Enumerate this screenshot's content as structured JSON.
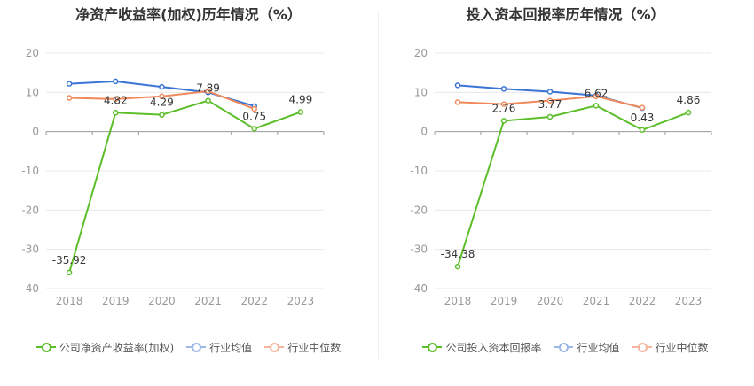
{
  "colors": {
    "company": "#5cbf2a",
    "industry_avg": "#3a75d6",
    "industry_median": "#f08a5d",
    "legend_avg": "#9db8e8",
    "legend_median": "#f5b49d",
    "grid": "#e8e8e8",
    "axis": "#999999",
    "tick": "#999999"
  },
  "chart_data": [
    {
      "type": "line",
      "title": "净资产收益率(加权)历年情况（%）",
      "categories": [
        "2018",
        "2019",
        "2020",
        "2021",
        "2022",
        "2023"
      ],
      "ylim": [
        -40,
        20
      ],
      "yticks": [
        20,
        10,
        0,
        -10,
        -20,
        -30,
        -40
      ],
      "grid": true,
      "legend_position": "bottom",
      "series": [
        {
          "name": "公司净资产收益率(加权)",
          "key": "company",
          "values": [
            -35.92,
            4.82,
            4.29,
            7.89,
            0.75,
            4.99
          ],
          "labels": [
            "-35.92",
            "4.82",
            "4.29",
            "7.89",
            "0.75",
            "4.99"
          ]
        },
        {
          "name": "行业均值",
          "key": "industry_avg",
          "values": [
            12.2,
            12.8,
            11.4,
            10.0,
            6.5,
            null
          ]
        },
        {
          "name": "行业中位数",
          "key": "industry_median",
          "values": [
            8.6,
            8.3,
            9.0,
            10.3,
            5.8,
            null
          ]
        }
      ]
    },
    {
      "type": "line",
      "title": "投入资本回报率历年情况（%）",
      "categories": [
        "2018",
        "2019",
        "2020",
        "2021",
        "2022",
        "2023"
      ],
      "ylim": [
        -40,
        20
      ],
      "yticks": [
        20,
        10,
        0,
        -10,
        -20,
        -30,
        -40
      ],
      "grid": true,
      "legend_position": "bottom",
      "series": [
        {
          "name": "公司投入资本回报率",
          "key": "company",
          "values": [
            -34.38,
            2.76,
            3.77,
            6.62,
            0.43,
            4.86
          ],
          "labels": [
            "-34.38",
            "2.76",
            "3.77",
            "6.62",
            "0.43",
            "4.86"
          ]
        },
        {
          "name": "行业均值",
          "key": "industry_avg",
          "values": [
            11.8,
            10.9,
            10.2,
            9.2,
            6.0,
            null
          ]
        },
        {
          "name": "行业中位数",
          "key": "industry_median",
          "values": [
            7.5,
            7.0,
            7.9,
            9.0,
            6.1,
            null
          ]
        }
      ]
    }
  ]
}
